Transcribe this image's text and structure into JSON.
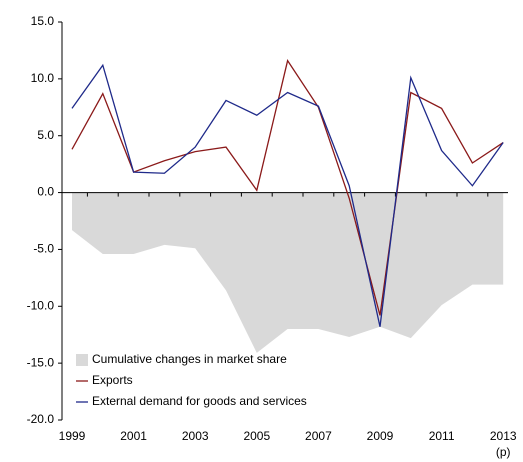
{
  "chart_data": {
    "type": "line",
    "categories": [
      "1999",
      null,
      "2001",
      null,
      "2003",
      null,
      "2005",
      null,
      "2007",
      null,
      "2009",
      null,
      "2011",
      null,
      "2013"
    ],
    "annotation": "(p)",
    "series": [
      {
        "name": "Cumulative changes in market share",
        "kind": "area",
        "color": "#d9d9d9",
        "values": [
          -3.3,
          -5.4,
          -5.4,
          -4.6,
          -4.9,
          -8.6,
          -14.1,
          -12.0,
          -12.0,
          -12.7,
          -11.8,
          -12.8,
          -9.9,
          -8.1,
          -8.1
        ]
      },
      {
        "name": "Exports",
        "kind": "line",
        "color": "#8b1a1a",
        "values": [
          3.8,
          8.7,
          1.8,
          2.8,
          3.6,
          4.0,
          0.2,
          11.6,
          7.5,
          -0.5,
          -10.8,
          8.8,
          7.4,
          2.6,
          4.4
        ]
      },
      {
        "name": "External demand for goods and services",
        "kind": "line",
        "color": "#1f2a8a",
        "values": [
          7.4,
          11.2,
          1.8,
          1.7,
          4.0,
          8.1,
          6.8,
          8.8,
          7.6,
          0.6,
          -11.8,
          10.1,
          3.7,
          0.6,
          4.4
        ]
      }
    ],
    "ylim": [
      -20,
      15
    ],
    "yticks": [
      {
        "value": -20,
        "label": "-20.0"
      },
      {
        "value": -15,
        "label": "-15.0"
      },
      {
        "value": -10,
        "label": "-10.0"
      },
      {
        "value": -5,
        "label": "-5.0"
      },
      {
        "value": 0,
        "label": "0.0"
      },
      {
        "value": 5,
        "label": "5.0"
      },
      {
        "value": 10,
        "label": "10.0"
      },
      {
        "value": 15,
        "label": "15.0"
      }
    ],
    "legend": "bottom-left"
  }
}
